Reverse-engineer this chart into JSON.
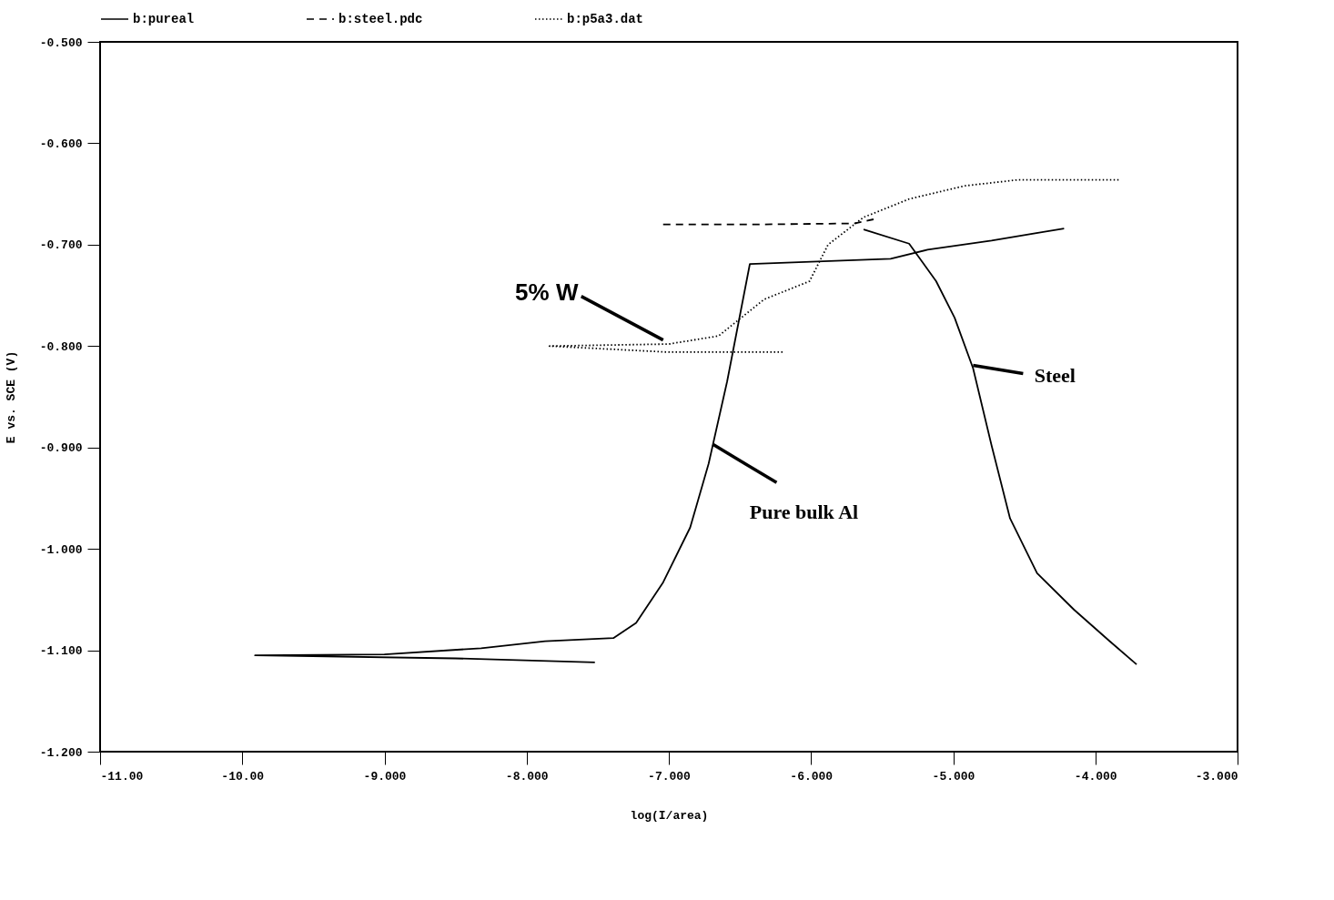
{
  "chart_data": {
    "type": "line",
    "xlabel": "log(I/area)",
    "ylabel": "E vs. SCE (V)",
    "xlim": [
      -11,
      -3
    ],
    "ylim": [
      -1.2,
      -0.5
    ],
    "xticks": [
      {
        "value": -11,
        "label": "-11.00"
      },
      {
        "value": -10,
        "label": "-10.00"
      },
      {
        "value": -9,
        "label": "-9.000"
      },
      {
        "value": -8,
        "label": "-8.000"
      },
      {
        "value": -7,
        "label": "-7.000"
      },
      {
        "value": -6,
        "label": "-6.000"
      },
      {
        "value": -5,
        "label": "-5.000"
      },
      {
        "value": -4,
        "label": "-4.000"
      },
      {
        "value": -3,
        "label": "-3.000"
      }
    ],
    "yticks": [
      {
        "value": -1.2,
        "label": "-1.200"
      },
      {
        "value": -1.1,
        "label": "-1.100"
      },
      {
        "value": -1.0,
        "label": "-1.000"
      },
      {
        "value": -0.9,
        "label": "-0.900"
      },
      {
        "value": -0.8,
        "label": "-0.800"
      },
      {
        "value": -0.7,
        "label": "-0.700"
      },
      {
        "value": -0.6,
        "label": "-0.600"
      },
      {
        "value": -0.5,
        "label": "-0.500"
      }
    ],
    "grid": false,
    "legend": "top",
    "series": [
      {
        "name": "b:pureal",
        "color": "#000000",
        "line_style": "solid",
        "x": [
          -7.52,
          -8.5,
          -9.91,
          -9.0,
          -8.32,
          -7.87,
          -7.39,
          -7.23,
          -7.04,
          -6.85,
          -6.72,
          -6.59,
          -6.43,
          -5.44,
          -5.18,
          -4.73,
          -4.22
        ],
        "values": [
          -1.112,
          -1.108,
          -1.105,
          -1.104,
          -1.098,
          -1.091,
          -1.088,
          -1.073,
          -1.033,
          -0.979,
          -0.916,
          -0.835,
          -0.719,
          -0.714,
          -0.705,
          -0.696,
          -0.684
        ]
      },
      {
        "name": "b:steel.pdc",
        "color": "#000000",
        "line_style": "dashed",
        "x": [
          -7.04,
          -6.33,
          -5.69,
          -5.56
        ],
        "values": [
          -0.68,
          -0.68,
          -0.679,
          -0.675
        ]
      },
      {
        "name": "b:p5a3.dat",
        "color": "#000000",
        "line_style": "dotted",
        "x": [
          -6.2,
          -7.0,
          -7.84,
          -7.0,
          -6.65,
          -6.33,
          -6.01,
          -5.88,
          -5.63,
          -5.31,
          -4.92,
          -4.54,
          -3.83
        ],
        "values": [
          -0.806,
          -0.806,
          -0.8,
          -0.798,
          -0.79,
          -0.754,
          -0.736,
          -0.7,
          -0.673,
          -0.655,
          -0.642,
          -0.636,
          -0.636
        ]
      },
      {
        "color": "#000000",
        "line_style": "solid",
        "x": [
          -5.63,
          -5.31,
          -5.12,
          -4.99,
          -4.86,
          -4.73,
          -4.6,
          -4.41,
          -4.15,
          -3.9,
          -3.71
        ],
        "values": [
          -0.685,
          -0.699,
          -0.736,
          -0.772,
          -0.822,
          -0.898,
          -0.97,
          -1.024,
          -1.06,
          -1.091,
          -1.114
        ]
      }
    ],
    "annotations": [
      {
        "text": "5% W",
        "x": -7.04,
        "y": -0.794
      },
      {
        "text": "Steel",
        "x": -4.86,
        "y": -0.819
      },
      {
        "text": "Pure bulk Al",
        "x": -6.69,
        "y": -0.897
      }
    ]
  }
}
